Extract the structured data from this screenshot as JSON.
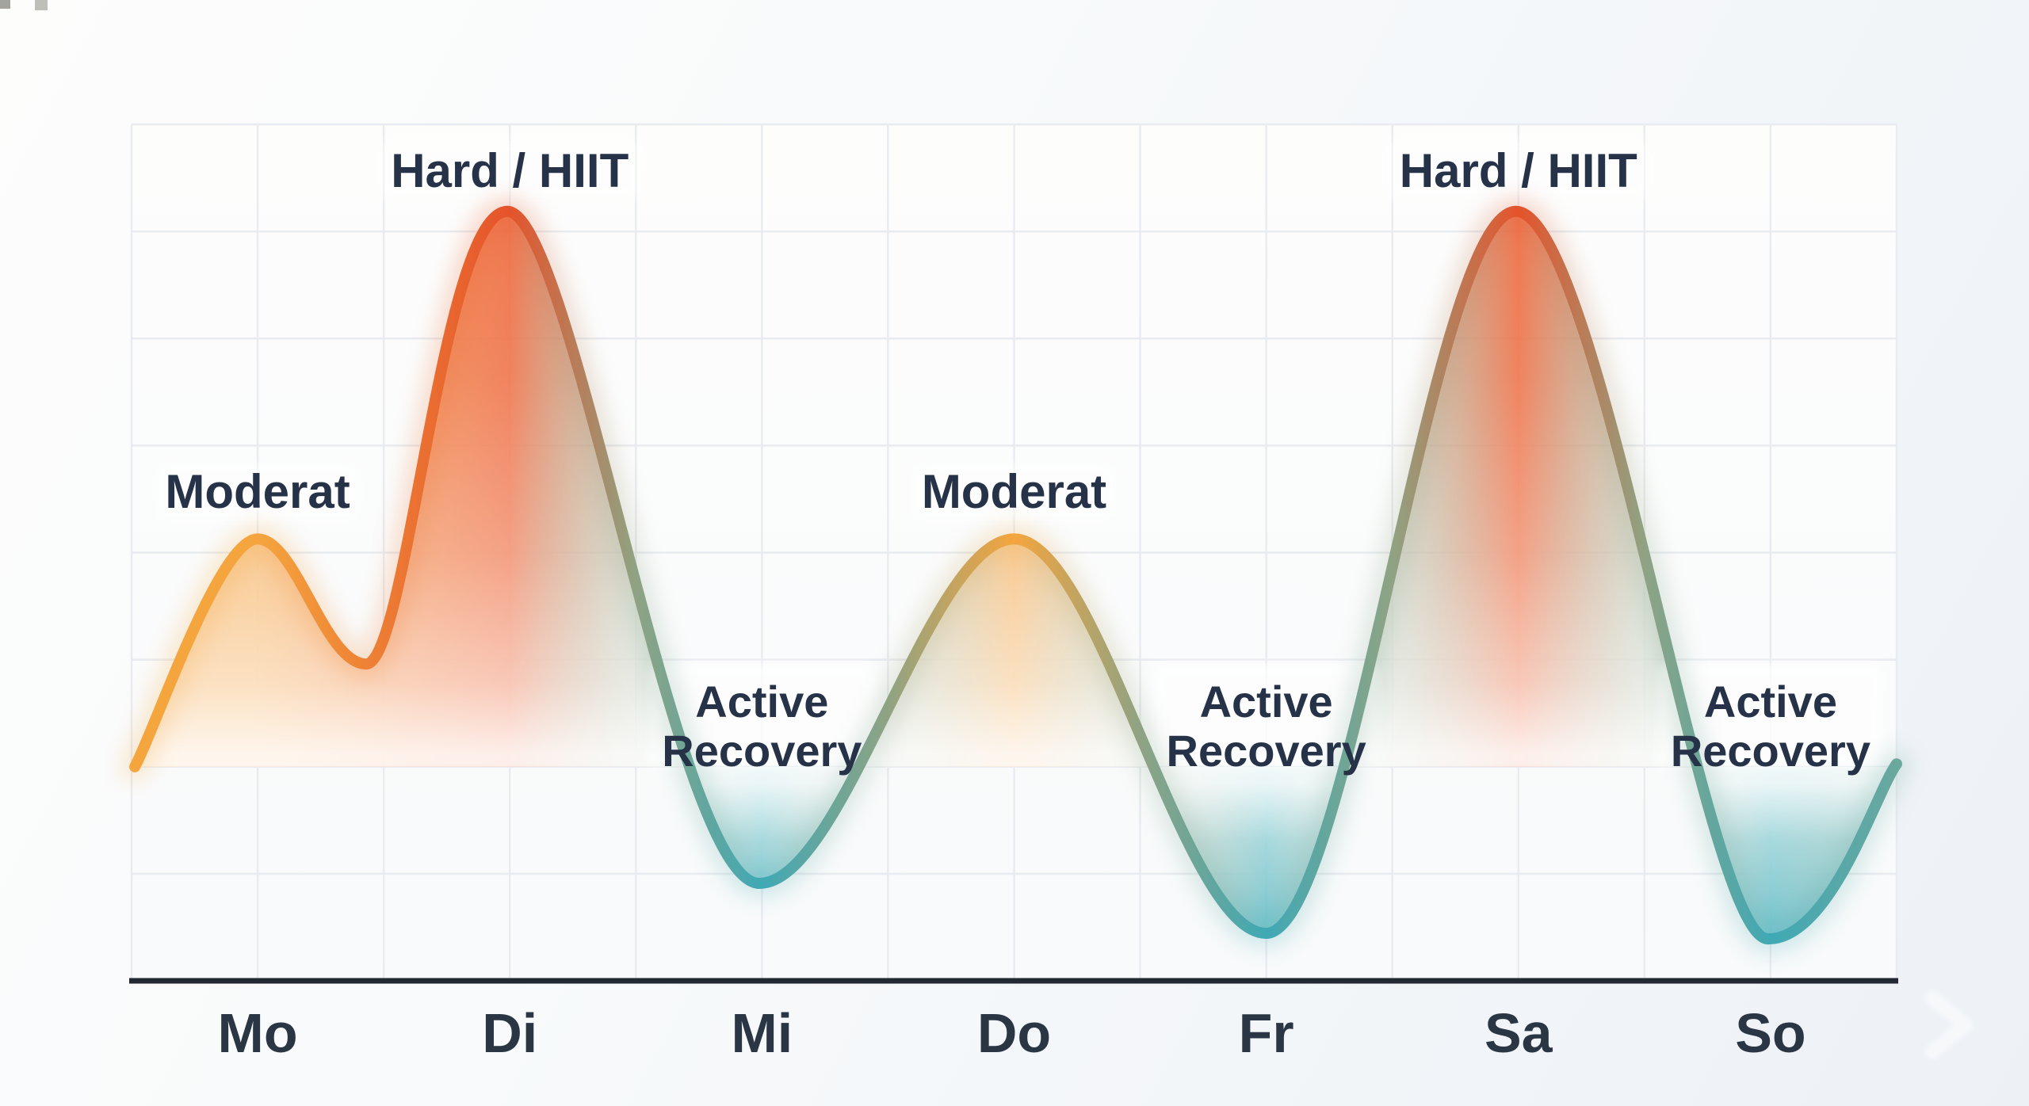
{
  "chart_data": {
    "type": "area",
    "title": "",
    "x_axis": {
      "label": "",
      "categories": [
        "Mo",
        "Di",
        "Mi",
        "Do",
        "Fr",
        "Sa",
        "So"
      ]
    },
    "y_axis": {
      "label": "",
      "range": [
        -0.45,
        1.15
      ],
      "baseline": 0,
      "ticks": []
    },
    "grid": {
      "columns": 14,
      "rows": 8,
      "visible": true
    },
    "legend": null,
    "series": [
      {
        "name": "weekly-training-intensity",
        "points": [
          {
            "day": "Mo",
            "zone": "Moderat",
            "zone_key": "moderate",
            "intensity": 0.41
          },
          {
            "day": "Di",
            "zone": "Hard / HIIT",
            "zone_key": "hard",
            "intensity": 1.0
          },
          {
            "day": "Mi",
            "zone": "Active Recovery",
            "zone_key": "recovery",
            "intensity": -0.21
          },
          {
            "day": "Do",
            "zone": "Moderat",
            "zone_key": "moderate",
            "intensity": 0.41
          },
          {
            "day": "Fr",
            "zone": "Active Recovery",
            "zone_key": "recovery",
            "intensity": -0.3
          },
          {
            "day": "Sa",
            "zone": "Hard / HIIT",
            "zone_key": "hard",
            "intensity": 1.0
          },
          {
            "day": "So",
            "zone": "Active Recovery",
            "zone_key": "recovery",
            "intensity": -0.31
          }
        ]
      }
    ],
    "curve_points": [
      [
        0.013,
        0.0
      ],
      [
        0.5,
        0.41
      ],
      [
        0.93,
        0.185
      ],
      [
        1.49,
        1.0
      ],
      [
        2.49,
        -0.21
      ],
      [
        3.5,
        0.41
      ],
      [
        4.5,
        -0.3
      ],
      [
        5.49,
        1.0
      ],
      [
        6.49,
        -0.31
      ],
      [
        7.0,
        0.005
      ]
    ],
    "annotations": [
      {
        "day": "Mo",
        "text": "Moderat",
        "kind": "moderate"
      },
      {
        "day": "Di",
        "text": "Hard / HIIT",
        "kind": "hard"
      },
      {
        "day": "Mi",
        "text": "Active Recovery",
        "kind": "recovery"
      },
      {
        "day": "Do",
        "text": "Moderat",
        "kind": "moderate"
      },
      {
        "day": "Fr",
        "text": "Active Recovery",
        "kind": "recovery"
      },
      {
        "day": "Sa",
        "text": "Hard / HIIT",
        "kind": "hard"
      },
      {
        "day": "So",
        "text": "Active Recovery",
        "kind": "recovery"
      }
    ]
  },
  "colors": {
    "moderate": "#F4A53E",
    "moderate_fill": "#F6AC55",
    "hard": "#E5532B",
    "hard_fill": "#EE6A3E",
    "recovery": "#3FA9B5",
    "recovery_fill": "#56B6C0",
    "transition": "#8FA383",
    "curve_end": "#6BA89E",
    "annotation_text": "#263248",
    "day_text": "#2B3644",
    "axis": "#222933",
    "grid_line": "#E8EBEF",
    "plot_bg_top": "#FDFDFC",
    "plot_bg_bottom": "#F8FAFB",
    "label_plate": "#FFFFFF",
    "chevron": "#FFFFFF",
    "corner_artifact": "#8D8C84"
  }
}
